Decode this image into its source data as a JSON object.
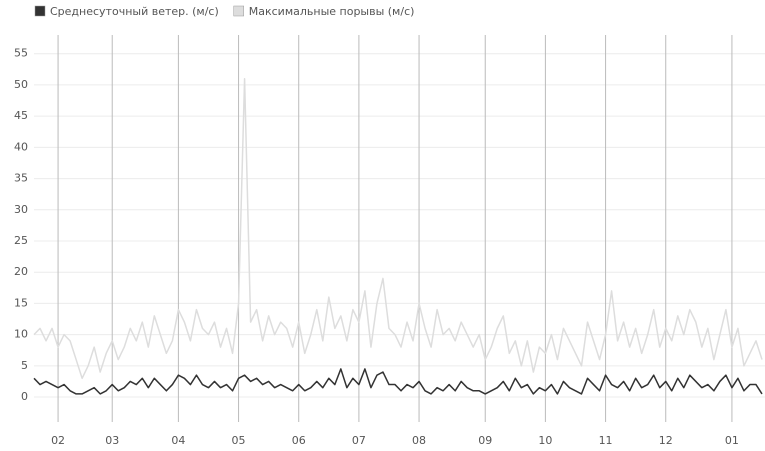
{
  "chart_data": {
    "type": "line",
    "categories": [
      null,
      null,
      null,
      null,
      "02",
      null,
      null,
      null,
      null,
      null,
      null,
      null,
      null,
      "03",
      null,
      null,
      null,
      null,
      null,
      null,
      null,
      null,
      null,
      null,
      "04",
      null,
      null,
      null,
      null,
      null,
      null,
      null,
      null,
      null,
      "05",
      null,
      null,
      null,
      null,
      null,
      null,
      null,
      null,
      null,
      "06",
      null,
      null,
      null,
      null,
      null,
      null,
      null,
      null,
      null,
      "07",
      null,
      null,
      null,
      null,
      null,
      null,
      null,
      null,
      null,
      "08",
      null,
      null,
      null,
      null,
      null,
      null,
      null,
      null,
      null,
      null,
      "09",
      null,
      null,
      null,
      null,
      null,
      null,
      null,
      null,
      null,
      "10",
      null,
      null,
      null,
      null,
      null,
      null,
      null,
      null,
      null,
      "11",
      null,
      null,
      null,
      null,
      null,
      null,
      null,
      null,
      null,
      "12",
      null,
      null,
      null,
      null,
      null,
      null,
      null,
      null,
      null,
      null,
      "01",
      null,
      null,
      null,
      null,
      null
    ],
    "series": [
      {
        "name": "Среднесуточный ветер. (м/с)",
        "color": "#333333",
        "values": [
          3,
          2,
          2.5,
          2,
          1.5,
          2,
          1,
          0.5,
          0.5,
          1,
          1.5,
          0.5,
          1,
          2,
          1,
          1.5,
          2.5,
          2,
          3,
          1.5,
          3,
          2,
          1,
          2,
          3.5,
          3,
          2,
          3.5,
          2,
          1.5,
          2.5,
          1.5,
          2,
          1,
          3,
          3.5,
          2.5,
          3,
          2,
          2.5,
          1.5,
          2,
          1.5,
          1,
          2,
          1,
          1.5,
          2.5,
          1.5,
          3,
          2,
          4.5,
          1.5,
          3,
          2,
          4.5,
          1.5,
          3.5,
          4,
          2,
          2,
          1,
          2,
          1.5,
          2.5,
          1,
          0.5,
          1.5,
          1,
          2,
          1,
          2.5,
          1.5,
          1,
          1,
          0.5,
          1,
          1.5,
          2.5,
          1,
          3,
          1.5,
          2,
          0.5,
          1.5,
          1,
          2,
          0.5,
          2.5,
          1.5,
          1,
          0.5,
          3,
          2,
          1,
          3.5,
          2,
          1.5,
          2.5,
          1,
          3,
          1.5,
          2,
          3.5,
          1.5,
          2.5,
          1,
          3,
          1.5,
          3.5,
          2.5,
          1.5,
          2,
          1,
          2.5,
          3.5,
          1.5,
          3,
          1,
          2,
          2,
          0.5
        ]
      },
      {
        "name": "Максимальные порывы (м/с)",
        "color": "#dddddd",
        "values": [
          10,
          11,
          9,
          11,
          8,
          10,
          9,
          6,
          3,
          5,
          8,
          4,
          7,
          9,
          6,
          8,
          11,
          9,
          12,
          8,
          13,
          10,
          7,
          9,
          14,
          12,
          9,
          14,
          11,
          10,
          12,
          8,
          11,
          7,
          15,
          51,
          12,
          14,
          9,
          13,
          10,
          12,
          11,
          8,
          12,
          7,
          10,
          14,
          9,
          16,
          11,
          13,
          9,
          14,
          12,
          17,
          8,
          15,
          19,
          11,
          10,
          8,
          12,
          9,
          15,
          11,
          8,
          14,
          10,
          11,
          9,
          12,
          10,
          8,
          10,
          6,
          8,
          11,
          13,
          7,
          9,
          5,
          9,
          4,
          8,
          7,
          10,
          6,
          11,
          9,
          7,
          5,
          12,
          9,
          6,
          10,
          17,
          9,
          12,
          8,
          11,
          7,
          10,
          14,
          8,
          11,
          9,
          13,
          10,
          14,
          12,
          8,
          11,
          6,
          10,
          14,
          8,
          11,
          5,
          7,
          9,
          6
        ]
      }
    ],
    "ylim": [
      -4,
      58
    ],
    "yticks": [
      0,
      5,
      10,
      15,
      20,
      25,
      30,
      35,
      40,
      45,
      50,
      55
    ],
    "grid": true
  }
}
